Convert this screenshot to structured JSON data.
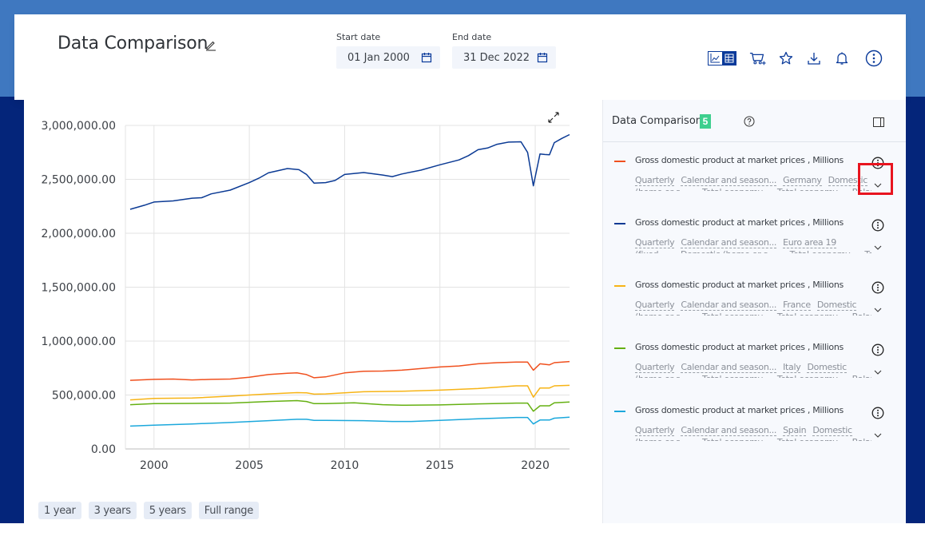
{
  "header": {
    "title": "Data Comparison",
    "start_date": {
      "label": "Start date",
      "value": "01 Jan 2000"
    },
    "end_date": {
      "label": "End date",
      "value": "31 Dec 2022"
    }
  },
  "toolbar": {
    "icons": [
      "chart-view-icon",
      "table-view-icon",
      "add-to-basket-icon",
      "favourite-star-icon",
      "download-icon",
      "notification-bell-icon",
      "more-options-icon"
    ]
  },
  "range_buttons": [
    "1 year",
    "3 years",
    "5 years",
    "Full range"
  ],
  "side_panel": {
    "title": "Data Comparison",
    "count": "5",
    "series": [
      {
        "color": "#f0501e",
        "title": "Gross domestic product at market prices , Millions",
        "tags": [
          "Quarterly",
          "Calendar and season...",
          "Germany",
          "Domestic"
        ],
        "tags2": [
          "(home or s...",
          "Total economy",
          "Total economy",
          "Balance"
        ]
      },
      {
        "color": "#0b3a94",
        "title": "Gross domestic product at market prices , Millions",
        "tags": [
          "Quarterly",
          "Calendar and season...",
          "Euro area 19"
        ],
        "tags2": [
          "(fixed...",
          "Domestic (home or s...",
          "Total economy",
          "Total"
        ]
      },
      {
        "color": "#f7b416",
        "title": "Gross domestic product at market prices , Millions",
        "tags": [
          "Quarterly",
          "Calendar and season...",
          "France",
          "Domestic"
        ],
        "tags2": [
          "(home or s...",
          "Total economy",
          "Total economy",
          "Balance"
        ]
      },
      {
        "color": "#65b012",
        "title": "Gross domestic product at market prices , Millions",
        "tags": [
          "Quarterly",
          "Calendar and season...",
          "Italy",
          "Domestic"
        ],
        "tags2": [
          "(home or s...",
          "Total economy",
          "Total economy",
          "Balance"
        ]
      },
      {
        "color": "#1ba8dc",
        "title": "Gross domestic product at market prices , Millions",
        "tags": [
          "Quarterly",
          "Calendar and season...",
          "Spain",
          "Domestic"
        ],
        "tags2": [
          "(home or s...",
          "Total economy",
          "Total economy",
          "Balance"
        ]
      }
    ]
  },
  "chart_data": {
    "type": "line",
    "title": "",
    "xlabel": "",
    "ylabel": "",
    "xlim": [
      1998.5,
      2021.8
    ],
    "ylim": [
      0,
      3000000
    ],
    "grid": true,
    "legend": "side-panel-right",
    "yticks": [
      "0.00",
      "500,000.00",
      "1,000,000.00",
      "1,500,000.00",
      "2,000,000.00",
      "2,500,000.00",
      "3,000,000.00"
    ],
    "ytick_values": [
      0,
      500000,
      1000000,
      1500000,
      2000000,
      2500000,
      3000000
    ],
    "xticks": [
      "2000",
      "2005",
      "2010",
      "2015",
      "2020"
    ],
    "xtick_values": [
      2000,
      2005,
      2010,
      2015,
      2020
    ],
    "series": [
      {
        "name": "Euro area 19",
        "color": "#0b3a94",
        "x": [
          1998.75,
          1999.5,
          2000.0,
          2001.0,
          2002.0,
          2002.5,
          2003.0,
          2004.0,
          2005.0,
          2005.5,
          2006.0,
          2007.0,
          2007.6,
          2008.0,
          2008.4,
          2009.0,
          2009.5,
          2010.0,
          2011.0,
          2012.0,
          2012.5,
          2013.0,
          2014.0,
          2015.0,
          2016.0,
          2016.5,
          2017.0,
          2017.5,
          2018.0,
          2018.6,
          2019.25,
          2019.6,
          2019.9,
          2020.25,
          2020.5,
          2020.75,
          2021.0,
          2021.4,
          2021.8
        ],
        "values": [
          2222000,
          2260000,
          2290000,
          2300000,
          2325000,
          2330000,
          2365000,
          2400000,
          2470000,
          2510000,
          2560000,
          2600000,
          2590000,
          2545000,
          2465000,
          2470000,
          2490000,
          2545000,
          2563000,
          2540000,
          2525000,
          2550000,
          2585000,
          2635000,
          2680000,
          2720000,
          2775000,
          2790000,
          2825000,
          2845000,
          2848000,
          2750000,
          2440000,
          2735000,
          2730000,
          2728000,
          2840000,
          2880000,
          2915000
        ]
      },
      {
        "name": "Germany",
        "color": "#f0501e",
        "x": [
          1998.75,
          2000.0,
          2001.0,
          2002.0,
          2003.0,
          2004.0,
          2005.0,
          2006.0,
          2007.0,
          2007.5,
          2008.0,
          2008.4,
          2009.0,
          2010.0,
          2011.0,
          2012.0,
          2013.0,
          2014.0,
          2015.0,
          2016.0,
          2017.0,
          2018.0,
          2019.0,
          2019.6,
          2019.9,
          2020.25,
          2020.75,
          2021.0,
          2021.8
        ],
        "values": [
          636000,
          645000,
          648000,
          640000,
          645000,
          648000,
          665000,
          690000,
          702000,
          705000,
          690000,
          660000,
          668000,
          705000,
          720000,
          722000,
          730000,
          745000,
          760000,
          770000,
          790000,
          800000,
          805000,
          805000,
          730000,
          790000,
          780000,
          800000,
          810000
        ]
      },
      {
        "name": "France",
        "color": "#f7b416",
        "x": [
          1998.75,
          2000.0,
          2002.0,
          2004.0,
          2006.0,
          2007.5,
          2008.0,
          2008.4,
          2009.0,
          2011.0,
          2013.0,
          2015.0,
          2017.0,
          2019.0,
          2019.6,
          2019.9,
          2020.25,
          2020.75,
          2021.0,
          2021.8
        ],
        "values": [
          455000,
          468000,
          472000,
          490000,
          510000,
          522000,
          520000,
          508000,
          510000,
          530000,
          535000,
          545000,
          560000,
          585000,
          585000,
          480000,
          565000,
          565000,
          585000,
          590000
        ]
      },
      {
        "name": "Italy",
        "color": "#65b012",
        "x": [
          1998.75,
          2000.0,
          2002.0,
          2004.0,
          2006.0,
          2007.5,
          2008.0,
          2008.4,
          2009.0,
          2010.5,
          2012.0,
          2013.0,
          2015.0,
          2017.0,
          2019.0,
          2019.6,
          2019.9,
          2020.25,
          2020.75,
          2021.0,
          2021.8
        ],
        "values": [
          410000,
          420000,
          422000,
          425000,
          440000,
          448000,
          440000,
          420000,
          420000,
          428000,
          410000,
          405000,
          408000,
          418000,
          425000,
          425000,
          350000,
          400000,
          400000,
          428000,
          435000
        ]
      },
      {
        "name": "Spain",
        "color": "#1ba8dc",
        "x": [
          1998.75,
          2000.0,
          2002.0,
          2004.0,
          2006.0,
          2007.5,
          2008.0,
          2008.4,
          2009.0,
          2011.0,
          2012.5,
          2013.5,
          2015.0,
          2017.0,
          2019.0,
          2019.6,
          2019.9,
          2020.25,
          2020.75,
          2021.0,
          2021.8
        ],
        "values": [
          212000,
          220000,
          232000,
          245000,
          262000,
          275000,
          275000,
          265000,
          265000,
          262000,
          255000,
          255000,
          265000,
          280000,
          292000,
          292000,
          232000,
          268000,
          268000,
          285000,
          295000
        ]
      }
    ]
  }
}
